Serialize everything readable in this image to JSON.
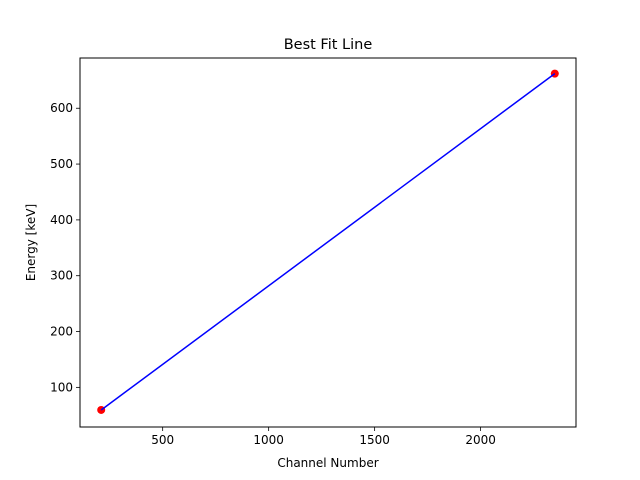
{
  "chart_data": {
    "type": "scatter",
    "title": "Best Fit Line",
    "xlabel": "Channel Number",
    "ylabel": "Energy [keV]",
    "xlim": [
      110,
      2450
    ],
    "ylim": [
      29,
      690
    ],
    "grid": false,
    "xticks": [
      500,
      1000,
      1500,
      2000
    ],
    "yticks": [
      100,
      200,
      300,
      400,
      500,
      600
    ],
    "points": {
      "x": [
        210,
        2350
      ],
      "y": [
        59.5,
        662
      ],
      "color": "#ff0000"
    },
    "fit_line": {
      "x": [
        210,
        2350
      ],
      "y": [
        59.5,
        662
      ],
      "color": "#0000ff"
    },
    "colors": {
      "points": "#ff0000",
      "line": "#0000ff"
    }
  }
}
